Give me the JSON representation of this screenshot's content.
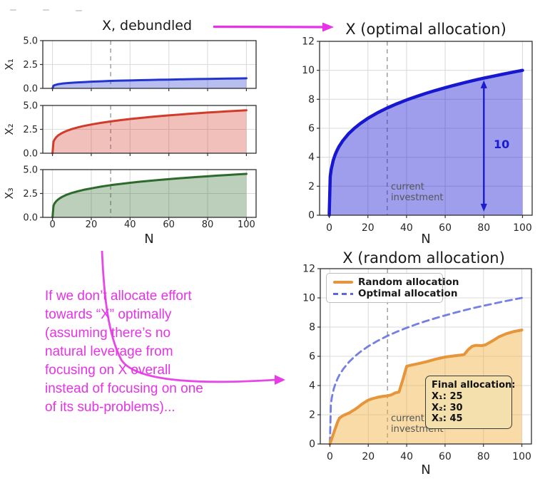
{
  "annotations": {
    "color": "#e633e6",
    "note_text": "If we don’t allocate effort\ntowards “X” optimally\n(assuming there’s no\nnatural leverage from\nfocusing on X overall\ninstead of focusing on one\nof its sub-problems)..."
  },
  "colors": {
    "blue_line": "#1717d2",
    "blue_fill": "rgba(23,23,210,0.42)",
    "red_line": "#d23b2b",
    "green_line": "#2d6b2d",
    "orange_line": "#e6953a",
    "orange_fill": "rgba(240,175,60,0.45)",
    "optimal_dashed": "#5a68de",
    "vline_gray": "#999999",
    "grid": "#dbdbdb",
    "arrow_blue": "#1b1bd0"
  },
  "chart_data": [
    {
      "id": "debundled",
      "type": "area",
      "title": "X, debundled",
      "xlabel": "N",
      "xlim": [
        0,
        100
      ],
      "xticks": [
        0,
        20,
        40,
        60,
        80,
        100
      ],
      "vline_x": 30,
      "grid": true,
      "x": [
        0,
        0.5,
        1,
        2,
        3,
        4,
        5,
        7,
        10,
        13,
        16,
        20,
        25,
        30,
        35,
        40,
        45,
        50,
        55,
        60,
        65,
        70,
        75,
        80,
        85,
        90,
        95,
        100
      ],
      "subplots": [
        {
          "ylabel": "X₁",
          "ylim": [
            0,
            5
          ],
          "yticks": [
            0,
            2.5,
            5
          ],
          "line_color": "#2236cf",
          "fill_color": "rgba(34,54,207,0.32)",
          "values": [
            0,
            0.28,
            0.33,
            0.39,
            0.44,
            0.47,
            0.5,
            0.54,
            0.59,
            0.63,
            0.66,
            0.7,
            0.74,
            0.78,
            0.81,
            0.83,
            0.86,
            0.88,
            0.9,
            0.92,
            0.94,
            0.96,
            0.98,
            0.99,
            1.01,
            1.02,
            1.04,
            1.05
          ]
        },
        {
          "ylabel": "X₂",
          "ylim": [
            0,
            5
          ],
          "yticks": [
            0,
            2.5,
            5
          ],
          "line_color": "#d23b2b",
          "fill_color": "rgba(210,59,43,0.32)",
          "values": [
            0,
            1.2,
            1.42,
            1.69,
            1.87,
            2.01,
            2.13,
            2.31,
            2.53,
            2.7,
            2.85,
            3.01,
            3.18,
            3.33,
            3.46,
            3.58,
            3.69,
            3.78,
            3.88,
            3.96,
            4.04,
            4.12,
            4.19,
            4.26,
            4.32,
            4.38,
            4.44,
            4.5
          ]
        },
        {
          "ylabel": "X₃",
          "ylim": [
            0,
            5
          ],
          "yticks": [
            0,
            2.5,
            5
          ],
          "line_color": "#2d6b2d",
          "fill_color": "rgba(45,107,45,0.32)",
          "values": [
            0,
            1.21,
            1.44,
            1.71,
            1.89,
            2.03,
            2.15,
            2.34,
            2.56,
            2.73,
            2.88,
            3.04,
            3.22,
            3.37,
            3.5,
            3.62,
            3.73,
            3.83,
            3.92,
            4,
            4.09,
            4.16,
            4.23,
            4.3,
            4.37,
            4.43,
            4.49,
            4.55
          ]
        }
      ]
    },
    {
      "id": "optimal",
      "type": "area",
      "title": "X (optimal allocation)",
      "xlabel": "N",
      "xlim": [
        0,
        100
      ],
      "ylim": [
        0,
        12
      ],
      "xticks": [
        0,
        20,
        40,
        60,
        80,
        100
      ],
      "yticks": [
        0,
        2,
        4,
        6,
        8,
        10,
        12
      ],
      "grid": true,
      "line_color": "#1717d2",
      "fill_color": "rgba(23,23,210,0.42)",
      "x": [
        0,
        0.5,
        1,
        2,
        3,
        4,
        5,
        7,
        10,
        13,
        16,
        20,
        25,
        30,
        35,
        40,
        45,
        50,
        55,
        60,
        65,
        70,
        75,
        80,
        85,
        90,
        95,
        100
      ],
      "values": [
        0,
        2.66,
        3.16,
        3.76,
        4.16,
        4.47,
        4.73,
        5.14,
        5.62,
        6,
        6.32,
        6.69,
        7.07,
        7.4,
        7.69,
        7.95,
        8.19,
        8.41,
        8.61,
        8.8,
        8.98,
        9.15,
        9.31,
        9.46,
        9.6,
        9.74,
        9.87,
        10
      ],
      "vline_x": 30,
      "vline_label": "current\ninvestment",
      "arrow": {
        "x": 80,
        "y1": 0.25,
        "y2": 9.3,
        "label": "10",
        "color": "#1b1bd0"
      }
    },
    {
      "id": "random",
      "type": "area",
      "title": "X (random allocation)",
      "xlabel": "N",
      "xlim": [
        0,
        100
      ],
      "ylim": [
        0,
        12
      ],
      "xticks": [
        0,
        20,
        40,
        60,
        80,
        100
      ],
      "yticks": [
        0,
        2,
        4,
        6,
        8,
        10,
        12
      ],
      "grid": true,
      "legend_position": "upper left",
      "vline_x": 30,
      "vline_label": "current\ninvestment",
      "series": [
        {
          "name": "Random allocation",
          "style": "solid",
          "color": "#e6953a",
          "fill_color": "rgba(240,175,60,0.45)",
          "points": [
            [
              0,
              0
            ],
            [
              2,
              0.75
            ],
            [
              4,
              1.5
            ],
            [
              5,
              1.78
            ],
            [
              7,
              1.95
            ],
            [
              10,
              2.12
            ],
            [
              13,
              2.36
            ],
            [
              15,
              2.55
            ],
            [
              17,
              2.76
            ],
            [
              20,
              3.0
            ],
            [
              22,
              3.1
            ],
            [
              25,
              3.2
            ],
            [
              28,
              3.27
            ],
            [
              30,
              3.3
            ],
            [
              32,
              3.36
            ],
            [
              34,
              3.5
            ],
            [
              36,
              3.55
            ],
            [
              38,
              4.4
            ],
            [
              40,
              5.32
            ],
            [
              43,
              5.42
            ],
            [
              46,
              5.5
            ],
            [
              50,
              5.62
            ],
            [
              55,
              5.8
            ],
            [
              60,
              5.95
            ],
            [
              64,
              6.02
            ],
            [
              68,
              6.08
            ],
            [
              70,
              6.13
            ],
            [
              72,
              6.45
            ],
            [
              74,
              6.68
            ],
            [
              76,
              6.75
            ],
            [
              79,
              6.73
            ],
            [
              81,
              6.78
            ],
            [
              85,
              7.08
            ],
            [
              88,
              7.33
            ],
            [
              92,
              7.55
            ],
            [
              96,
              7.7
            ],
            [
              100,
              7.8
            ]
          ]
        },
        {
          "name": "Optimal allocation",
          "style": "dashed",
          "color": "#5a68de",
          "x": [
            0,
            0.5,
            1,
            2,
            3,
            4,
            5,
            7,
            10,
            13,
            16,
            20,
            25,
            30,
            35,
            40,
            45,
            50,
            55,
            60,
            65,
            70,
            75,
            80,
            85,
            90,
            95,
            100
          ],
          "values": [
            0,
            2.66,
            3.16,
            3.76,
            4.16,
            4.47,
            4.73,
            5.14,
            5.62,
            6,
            6.32,
            6.69,
            7.07,
            7.4,
            7.69,
            7.95,
            8.19,
            8.41,
            8.61,
            8.8,
            8.98,
            9.15,
            9.31,
            9.46,
            9.6,
            9.74,
            9.87,
            10
          ]
        }
      ],
      "final_box": {
        "title": "Final allocation:",
        "lines": [
          "X₁: 25",
          "X₂: 30",
          "X₃: 45"
        ]
      }
    }
  ]
}
